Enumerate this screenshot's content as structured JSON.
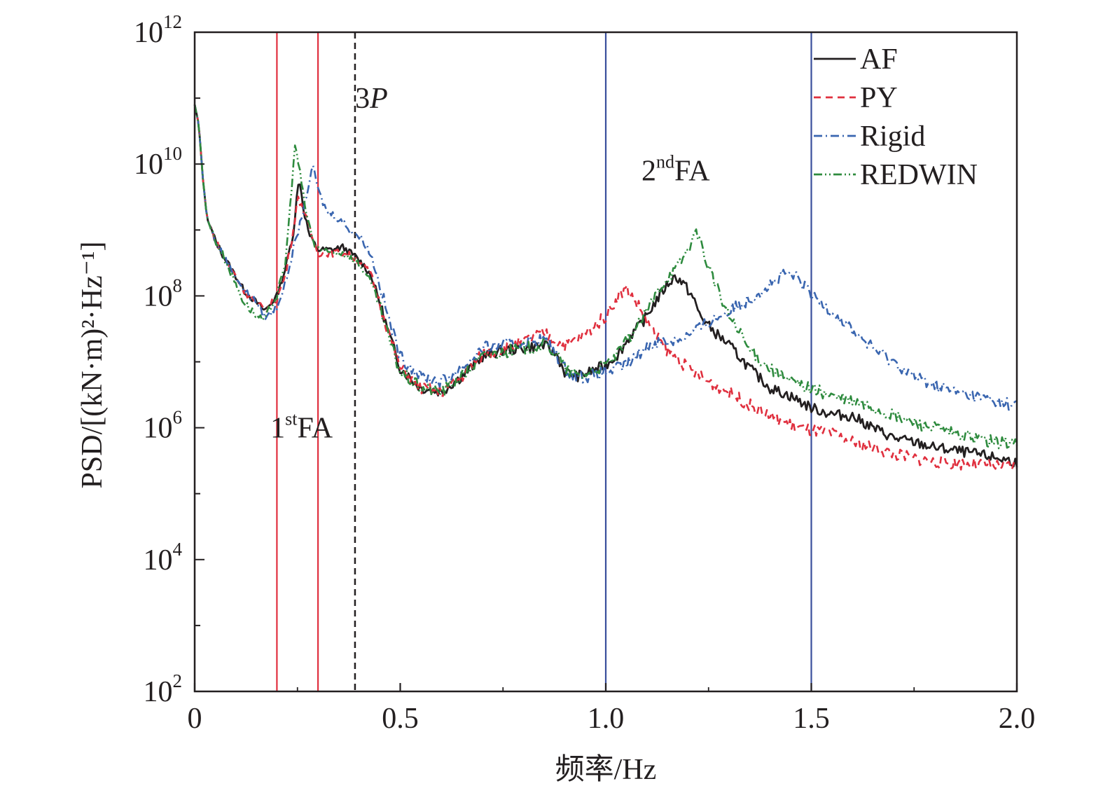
{
  "chart_data": {
    "type": "line",
    "xlabel": "频率/Hz",
    "ylabel": "PSD/[(kN·m)²·Hz⁻¹]",
    "y_scale": "log",
    "xlim": [
      0,
      2.0
    ],
    "ylim": [
      100,
      1000000000000
    ],
    "x_ticks": [
      "0",
      "0.5",
      "1.0",
      "1.5",
      "2.0"
    ],
    "y_ticks": [
      {
        "value": 100,
        "base": "10",
        "exp": "2"
      },
      {
        "value": 10000,
        "base": "10",
        "exp": "4"
      },
      {
        "value": 1000000,
        "base": "10",
        "exp": "6"
      },
      {
        "value": 100000000,
        "base": "10",
        "exp": "8"
      },
      {
        "value": 10000000000,
        "base": "10",
        "exp": "10"
      },
      {
        "value": 1000000000000,
        "base": "10",
        "exp": "12"
      }
    ],
    "legend_position": "top-right",
    "series": [
      {
        "name": "AF",
        "color": "#231f20",
        "dash": "solid",
        "points": [
          [
            0,
            80000000000.0
          ],
          [
            0.01,
            40000000000.0
          ],
          [
            0.02,
            6000000000.0
          ],
          [
            0.03,
            1500000000.0
          ],
          [
            0.05,
            700000000.0
          ],
          [
            0.07,
            400000000.0
          ],
          [
            0.1,
            200000000.0
          ],
          [
            0.12,
            120000000.0
          ],
          [
            0.15,
            80000000.0
          ],
          [
            0.17,
            60000000.0
          ],
          [
            0.18,
            70000000.0
          ],
          [
            0.2,
            100000000.0
          ],
          [
            0.22,
            250000000.0
          ],
          [
            0.24,
            900000000.0
          ],
          [
            0.25,
            4000000000.0
          ],
          [
            0.255,
            6000000000.0
          ],
          [
            0.265,
            2000000000.0
          ],
          [
            0.28,
            800000000.0
          ],
          [
            0.3,
            500000000.0
          ],
          [
            0.33,
            500000000.0
          ],
          [
            0.36,
            550000000.0
          ],
          [
            0.39,
            400000000.0
          ],
          [
            0.41,
            300000000.0
          ],
          [
            0.43,
            200000000.0
          ],
          [
            0.45,
            80000000.0
          ],
          [
            0.47,
            30000000.0
          ],
          [
            0.5,
            8000000.0
          ],
          [
            0.55,
            4000000.0
          ],
          [
            0.6,
            3500000.0
          ],
          [
            0.65,
            6000000.0
          ],
          [
            0.7,
            12000000.0
          ],
          [
            0.75,
            15000000.0
          ],
          [
            0.8,
            16000000.0
          ],
          [
            0.85,
            18000000.0
          ],
          [
            0.88,
            13000000.0
          ],
          [
            0.9,
            7000000.0
          ],
          [
            0.93,
            6000000.0
          ],
          [
            0.96,
            7000000.0
          ],
          [
            1.0,
            9000000.0
          ],
          [
            1.03,
            13000000.0
          ],
          [
            1.06,
            25000000.0
          ],
          [
            1.09,
            40000000.0
          ],
          [
            1.12,
            80000000.0
          ],
          [
            1.15,
            150000000.0
          ],
          [
            1.17,
            200000000.0
          ],
          [
            1.19,
            150000000.0
          ],
          [
            1.21,
            100000000.0
          ],
          [
            1.23,
            50000000.0
          ],
          [
            1.26,
            30000000.0
          ],
          [
            1.3,
            18000000.0
          ],
          [
            1.35,
            8000000.0
          ],
          [
            1.4,
            4000000.0
          ],
          [
            1.45,
            3000000.0
          ],
          [
            1.5,
            2000000.0
          ],
          [
            1.55,
            1600000.0
          ],
          [
            1.6,
            1500000.0
          ],
          [
            1.65,
            1000000.0
          ],
          [
            1.7,
            700000.0
          ],
          [
            1.75,
            600000.0
          ],
          [
            1.8,
            500000.0
          ],
          [
            1.85,
            450000.0
          ],
          [
            1.9,
            400000.0
          ],
          [
            1.95,
            350000.0
          ],
          [
            2.0,
            300000.0
          ]
        ]
      },
      {
        "name": "PY",
        "color": "#e0303f",
        "dash": "dashed",
        "points": [
          [
            0,
            80000000000.0
          ],
          [
            0.01,
            40000000000.0
          ],
          [
            0.02,
            6000000000.0
          ],
          [
            0.03,
            1500000000.0
          ],
          [
            0.05,
            700000000.0
          ],
          [
            0.07,
            400000000.0
          ],
          [
            0.1,
            200000000.0
          ],
          [
            0.12,
            120000000.0
          ],
          [
            0.15,
            80000000.0
          ],
          [
            0.17,
            60000000.0
          ],
          [
            0.18,
            70000000.0
          ],
          [
            0.2,
            90000000.0
          ],
          [
            0.22,
            200000000.0
          ],
          [
            0.24,
            1000000000.0
          ],
          [
            0.25,
            3000000000.0
          ],
          [
            0.26,
            2500000000.0
          ],
          [
            0.28,
            1000000000.0
          ],
          [
            0.3,
            450000000.0
          ],
          [
            0.33,
            450000000.0
          ],
          [
            0.36,
            450000000.0
          ],
          [
            0.39,
            380000000.0
          ],
          [
            0.41,
            300000000.0
          ],
          [
            0.43,
            200000000.0
          ],
          [
            0.45,
            80000000.0
          ],
          [
            0.47,
            30000000.0
          ],
          [
            0.5,
            8000000.0
          ],
          [
            0.55,
            4000000.0
          ],
          [
            0.6,
            3500000.0
          ],
          [
            0.65,
            6000000.0
          ],
          [
            0.7,
            13000000.0
          ],
          [
            0.75,
            16000000.0
          ],
          [
            0.8,
            20000000.0
          ],
          [
            0.85,
            28000000.0
          ],
          [
            0.88,
            20000000.0
          ],
          [
            0.9,
            18000000.0
          ],
          [
            0.93,
            22000000.0
          ],
          [
            0.96,
            30000000.0
          ],
          [
            1.0,
            50000000.0
          ],
          [
            1.03,
            100000000.0
          ],
          [
            1.05,
            130000000.0
          ],
          [
            1.08,
            70000000.0
          ],
          [
            1.1,
            40000000.0
          ],
          [
            1.12,
            25000000.0
          ],
          [
            1.15,
            15000000.0
          ],
          [
            1.2,
            8000000.0
          ],
          [
            1.25,
            5000000.0
          ],
          [
            1.3,
            3500000.0
          ],
          [
            1.35,
            2200000.0
          ],
          [
            1.4,
            1500000.0
          ],
          [
            1.45,
            1100000.0
          ],
          [
            1.5,
            900000.0
          ],
          [
            1.55,
            800000.0
          ],
          [
            1.6,
            600000.0
          ],
          [
            1.65,
            500000.0
          ],
          [
            1.7,
            400000.0
          ],
          [
            1.75,
            350000.0
          ],
          [
            1.8,
            300000.0
          ],
          [
            1.9,
            280000.0
          ],
          [
            2.0,
            250000.0
          ]
        ]
      },
      {
        "name": "Rigid",
        "color": "#3a66b0",
        "dash": "dashdot",
        "points": [
          [
            0,
            80000000000.0
          ],
          [
            0.01,
            40000000000.0
          ],
          [
            0.02,
            6000000000.0
          ],
          [
            0.03,
            1500000000.0
          ],
          [
            0.05,
            700000000.0
          ],
          [
            0.07,
            400000000.0
          ],
          [
            0.1,
            200000000.0
          ],
          [
            0.12,
            120000000.0
          ],
          [
            0.15,
            80000000.0
          ],
          [
            0.17,
            50000000.0
          ],
          [
            0.18,
            50000000.0
          ],
          [
            0.2,
            70000000.0
          ],
          [
            0.22,
            150000000.0
          ],
          [
            0.24,
            500000000.0
          ],
          [
            0.26,
            1500000000.0
          ],
          [
            0.28,
            6000000000.0
          ],
          [
            0.29,
            9000000000.0
          ],
          [
            0.3,
            4000000000.0
          ],
          [
            0.32,
            2000000000.0
          ],
          [
            0.35,
            1500000000.0
          ],
          [
            0.38,
            1000000000.0
          ],
          [
            0.41,
            700000000.0
          ],
          [
            0.43,
            400000000.0
          ],
          [
            0.45,
            150000000.0
          ],
          [
            0.47,
            50000000.0
          ],
          [
            0.5,
            12000000.0
          ],
          [
            0.55,
            6000000.0
          ],
          [
            0.6,
            5000000.0
          ],
          [
            0.65,
            8000000.0
          ],
          [
            0.7,
            16000000.0
          ],
          [
            0.75,
            18000000.0
          ],
          [
            0.8,
            20000000.0
          ],
          [
            0.85,
            22000000.0
          ],
          [
            0.88,
            13000000.0
          ],
          [
            0.9,
            8000000.0
          ],
          [
            0.93,
            6000000.0
          ],
          [
            0.96,
            6000000.0
          ],
          [
            1.0,
            7000000.0
          ],
          [
            1.03,
            8000000.0
          ],
          [
            1.06,
            10000000.0
          ],
          [
            1.09,
            15000000.0
          ],
          [
            1.12,
            20000000.0
          ],
          [
            1.15,
            20000000.0
          ],
          [
            1.2,
            25000000.0
          ],
          [
            1.25,
            40000000.0
          ],
          [
            1.3,
            60000000.0
          ],
          [
            1.35,
            90000000.0
          ],
          [
            1.4,
            150000000.0
          ],
          [
            1.44,
            220000000.0
          ],
          [
            1.47,
            180000000.0
          ],
          [
            1.5,
            100000000.0
          ],
          [
            1.55,
            60000000.0
          ],
          [
            1.6,
            30000000.0
          ],
          [
            1.65,
            16000000.0
          ],
          [
            1.7,
            10000000.0
          ],
          [
            1.75,
            6000000.0
          ],
          [
            1.8,
            4500000.0
          ],
          [
            1.85,
            3500000.0
          ],
          [
            1.9,
            3000000.0
          ],
          [
            1.95,
            2500000.0
          ],
          [
            2.0,
            2200000.0
          ]
        ]
      },
      {
        "name": "REDWIN",
        "color": "#2e8b3e",
        "dash": "dashdotdot",
        "points": [
          [
            0,
            80000000000.0
          ],
          [
            0.01,
            40000000000.0
          ],
          [
            0.02,
            6000000000.0
          ],
          [
            0.03,
            1500000000.0
          ],
          [
            0.05,
            700000000.0
          ],
          [
            0.07,
            400000000.0
          ],
          [
            0.1,
            150000000.0
          ],
          [
            0.12,
            80000000.0
          ],
          [
            0.15,
            50000000.0
          ],
          [
            0.17,
            40000000.0
          ],
          [
            0.18,
            60000000.0
          ],
          [
            0.2,
            100000000.0
          ],
          [
            0.22,
            300000000.0
          ],
          [
            0.23,
            1500000000.0
          ],
          [
            0.24,
            10000000000.0
          ],
          [
            0.245,
            20000000000.0
          ],
          [
            0.255,
            8000000000.0
          ],
          [
            0.27,
            2000000000.0
          ],
          [
            0.29,
            600000000.0
          ],
          [
            0.32,
            450000000.0
          ],
          [
            0.36,
            450000000.0
          ],
          [
            0.39,
            350000000.0
          ],
          [
            0.41,
            250000000.0
          ],
          [
            0.43,
            150000000.0
          ],
          [
            0.45,
            70000000.0
          ],
          [
            0.47,
            25000000.0
          ],
          [
            0.5,
            7000000.0
          ],
          [
            0.55,
            4000000.0
          ],
          [
            0.6,
            3500000.0
          ],
          [
            0.65,
            6000000.0
          ],
          [
            0.7,
            12000000.0
          ],
          [
            0.75,
            14000000.0
          ],
          [
            0.8,
            16000000.0
          ],
          [
            0.85,
            18000000.0
          ],
          [
            0.88,
            14000000.0
          ],
          [
            0.9,
            8000000.0
          ],
          [
            0.93,
            6000000.0
          ],
          [
            0.96,
            7000000.0
          ],
          [
            1.0,
            9000000.0
          ],
          [
            1.03,
            13000000.0
          ],
          [
            1.06,
            25000000.0
          ],
          [
            1.09,
            45000000.0
          ],
          [
            1.12,
            100000000.0
          ],
          [
            1.15,
            200000000.0
          ],
          [
            1.17,
            250000000.0
          ],
          [
            1.19,
            400000000.0
          ],
          [
            1.21,
            700000000.0
          ],
          [
            1.225,
            900000000.0
          ],
          [
            1.24,
            400000000.0
          ],
          [
            1.26,
            200000000.0
          ],
          [
            1.28,
            90000000.0
          ],
          [
            1.3,
            50000000.0
          ],
          [
            1.35,
            15000000.0
          ],
          [
            1.4,
            8000000.0
          ],
          [
            1.45,
            5000000.0
          ],
          [
            1.5,
            4000000.0
          ],
          [
            1.55,
            3000000.0
          ],
          [
            1.6,
            2500000.0
          ],
          [
            1.65,
            2000000.0
          ],
          [
            1.7,
            1500000.0
          ],
          [
            1.75,
            1200000.0
          ],
          [
            1.8,
            1000000.0
          ],
          [
            1.85,
            800000.0
          ],
          [
            1.9,
            700000.0
          ],
          [
            1.95,
            600000.0
          ],
          [
            2.0,
            600000.0
          ]
        ]
      }
    ],
    "reference_lines": [
      {
        "x": 0.2,
        "color": "#e0303f",
        "style": "solid"
      },
      {
        "x": 0.3,
        "color": "#e0303f",
        "style": "solid"
      },
      {
        "x": 0.39,
        "color": "#231f20",
        "style": "dashed"
      },
      {
        "x": 1.0,
        "color": "#3a4f9c",
        "style": "solid"
      },
      {
        "x": 1.5,
        "color": "#3a4f9c",
        "style": "solid"
      }
    ],
    "annotations": [
      {
        "base": "1",
        "sup": "st",
        "rest": "FA",
        "x": 0.26,
        "y": 1000000
      },
      {
        "base": "2",
        "sup": "nd",
        "rest": "FA",
        "x": 1.17,
        "y": 8000000000
      },
      {
        "base": "3",
        "sup": "",
        "rest": "P",
        "italic_rest": true,
        "x": 0.43,
        "y": 100000000000
      }
    ]
  }
}
